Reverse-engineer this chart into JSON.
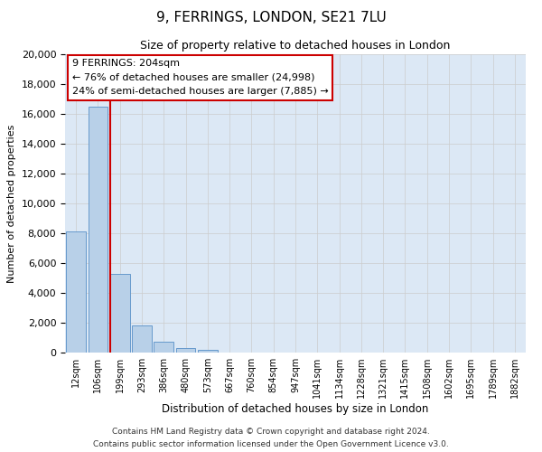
{
  "title": "9, FERRINGS, LONDON, SE21 7LU",
  "subtitle": "Size of property relative to detached houses in London",
  "xlabel": "Distribution of detached houses by size in London",
  "ylabel": "Number of detached properties",
  "bar_labels": [
    "12sqm",
    "106sqm",
    "199sqm",
    "293sqm",
    "386sqm",
    "480sqm",
    "573sqm",
    "667sqm",
    "760sqm",
    "854sqm",
    "947sqm",
    "1041sqm",
    "1134sqm",
    "1228sqm",
    "1321sqm",
    "1415sqm",
    "1508sqm",
    "1602sqm",
    "1695sqm",
    "1789sqm",
    "1882sqm"
  ],
  "bar_values": [
    8100,
    16500,
    5300,
    1800,
    750,
    300,
    200,
    0,
    0,
    0,
    0,
    0,
    0,
    0,
    0,
    0,
    0,
    0,
    0,
    0,
    0
  ],
  "bar_color": "#b8d0e8",
  "bar_edge_color": "#6699cc",
  "vline_color": "#cc0000",
  "ylim": [
    0,
    20000
  ],
  "yticks": [
    0,
    2000,
    4000,
    6000,
    8000,
    10000,
    12000,
    14000,
    16000,
    18000,
    20000
  ],
  "annotation_title": "9 FERRINGS: 204sqm",
  "annotation_line1": "← 76% of detached houses are smaller (24,998)",
  "annotation_line2": "24% of semi-detached houses are larger (7,885) →",
  "annotation_box_facecolor": "#ffffff",
  "annotation_box_edgecolor": "#cc0000",
  "grid_color": "#cccccc",
  "bg_color": "#dce8f5",
  "fig_bg_color": "#ffffff",
  "footer1": "Contains HM Land Registry data © Crown copyright and database right 2024.",
  "footer2": "Contains public sector information licensed under the Open Government Licence v3.0."
}
